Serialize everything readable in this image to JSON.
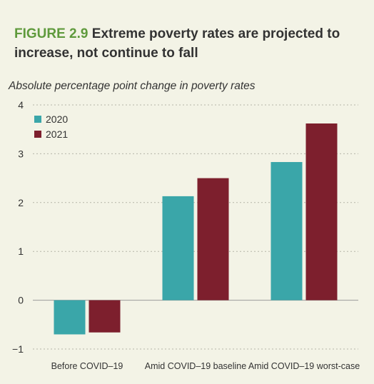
{
  "header": {
    "figure_label": "FIGURE 2.9",
    "title_text": "Extreme poverty rates are projected to increase, not continue to fall"
  },
  "chart_data": {
    "type": "bar",
    "title": "FIGURE 2.9 Extreme poverty rates are projected to increase, not continue to fall",
    "ylabel": "Absolute percentage point change in poverty rates",
    "xlabel": "",
    "categories": [
      "Before COVID–19",
      "Amid COVID–19 baseline",
      "Amid COVID–19 worst-case"
    ],
    "series": [
      {
        "name": "2020",
        "values": [
          -0.7,
          2.13,
          2.83
        ],
        "color": "#3aa6a9"
      },
      {
        "name": "2021",
        "values": [
          -0.66,
          2.5,
          3.62
        ],
        "color": "#7d1f2d"
      }
    ],
    "ylim": [
      -1,
      4
    ],
    "yticks": [
      4,
      3,
      2,
      1,
      0,
      "−1"
    ],
    "grid": true,
    "legend_position": "top-left"
  }
}
